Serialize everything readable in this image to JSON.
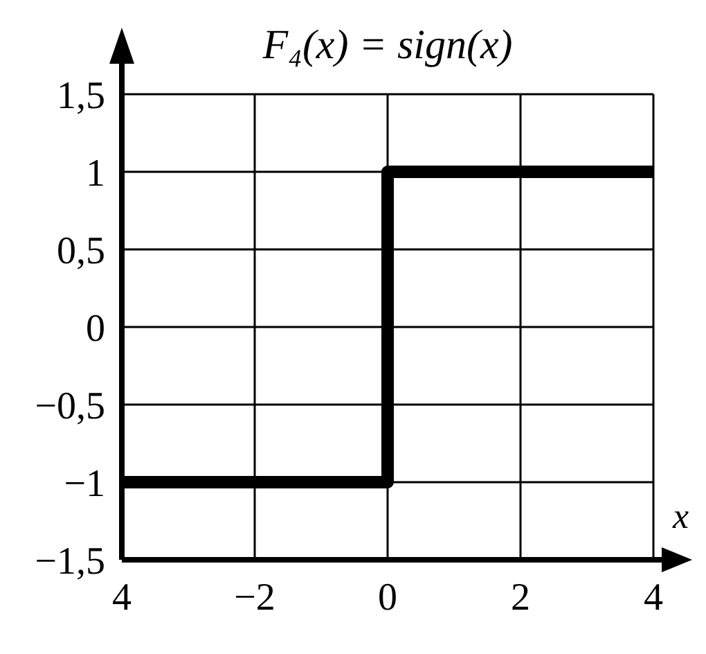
{
  "chart_data": {
    "type": "step",
    "title": "F₄(x) = sign(x)",
    "xlabel": "x",
    "series": [
      {
        "color": "#000000",
        "x": [
          -4,
          0,
          4
        ],
        "values": [
          -1,
          1,
          1
        ]
      }
    ],
    "xlim": [
      -4,
      4
    ],
    "xticks": [
      {
        "value": -4,
        "label": "4"
      },
      {
        "value": -2,
        "label": "−2"
      },
      0,
      2,
      4
    ],
    "ylim": [
      -1.5,
      1.5
    ],
    "yticks": [
      {
        "value": -1.5,
        "label": "−1,5"
      },
      {
        "value": -1,
        "label": "−1"
      },
      {
        "value": -0.5,
        "label": "−0,5"
      },
      0,
      {
        "value": 0.5,
        "label": "0,5"
      },
      1,
      {
        "value": 1.5,
        "label": "1,5"
      }
    ],
    "grid": true,
    "legend": false,
    "marker": "none",
    "line_style": "solid"
  }
}
